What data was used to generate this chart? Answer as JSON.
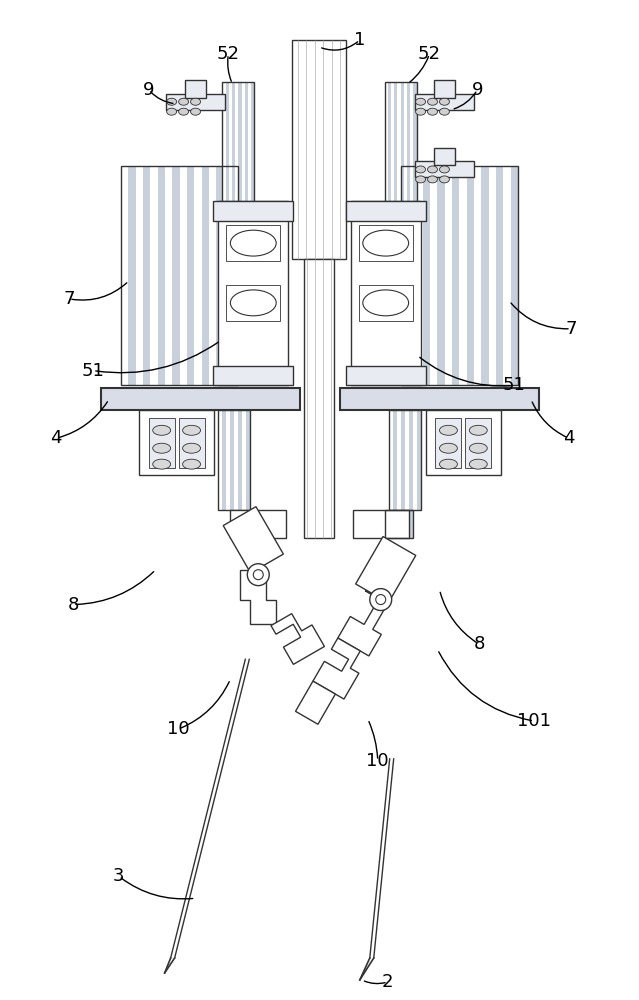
{
  "fig_width": 6.39,
  "fig_height": 10.0,
  "dpi": 100,
  "bg_color": "#ffffff",
  "lc": "#333333",
  "lw": 1.0,
  "lw_thick": 1.5,
  "lw_thin": 0.6,
  "stripe_dark": "#c8d0dc",
  "stripe_light": "#ffffff",
  "fill_light": "#e8ecf2",
  "fill_mid": "#d8dde8"
}
